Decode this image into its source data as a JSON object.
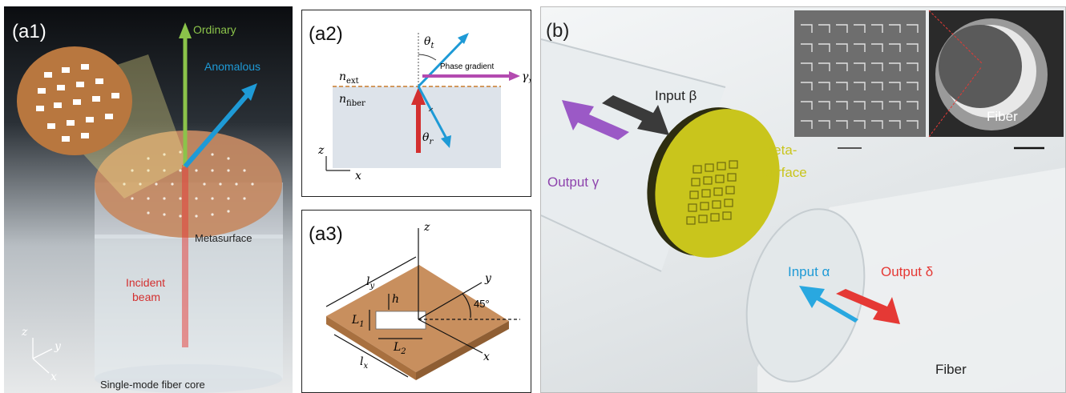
{
  "a1": {
    "label": "(a1)",
    "ordinary": "Ordinary",
    "anomalous": "Anomalous",
    "metasurface": "Metasurface",
    "incident_1": "Incident",
    "incident_2": "beam",
    "fiber_core": "Single-mode fiber core",
    "axis_z": "z",
    "axis_y": "y",
    "axis_x": "x",
    "colors": {
      "ordinary": "#8bc34a",
      "anomalous": "#1e9ad6",
      "incident": "#e53935",
      "meta": "#c07a4a"
    }
  },
  "a2": {
    "label": "(a2)",
    "theta_t": "θ",
    "theta_t_sub": "t",
    "theta_r": "θ",
    "theta_r_sub": "r",
    "phase_gradient": "Phase gradient",
    "gamma": "γ",
    "gamma_sub": "x",
    "n_ext": "n",
    "n_ext_sub": "ext",
    "n_fiber": "n",
    "n_fiber_sub": "fiber",
    "axis_z": "z",
    "axis_x": "x"
  },
  "a3": {
    "label": "(a3)",
    "axis_z": "z",
    "axis_y": "y",
    "axis_x": "x",
    "ly": "l",
    "ly_sub": "y",
    "lx": "l",
    "lx_sub": "x",
    "h": "h",
    "L1": "L",
    "L1_sub": "1",
    "L2": "L",
    "L2_sub": "2",
    "angle": "45°"
  },
  "b": {
    "label": "(b)",
    "input_beta": "Input β",
    "output_gamma": "Output γ",
    "input_alpha": "Input α",
    "output_delta": "Output δ",
    "meta_1": "Meta-",
    "meta_2": "surface",
    "fiber_inset": "Fiber",
    "fiber_bottom": "Fiber",
    "colors": {
      "alpha": "#29a8e0",
      "beta": "#3a3a3a",
      "gamma": "#9b59c6",
      "delta": "#e53935",
      "meta": "#c9c51c"
    }
  }
}
